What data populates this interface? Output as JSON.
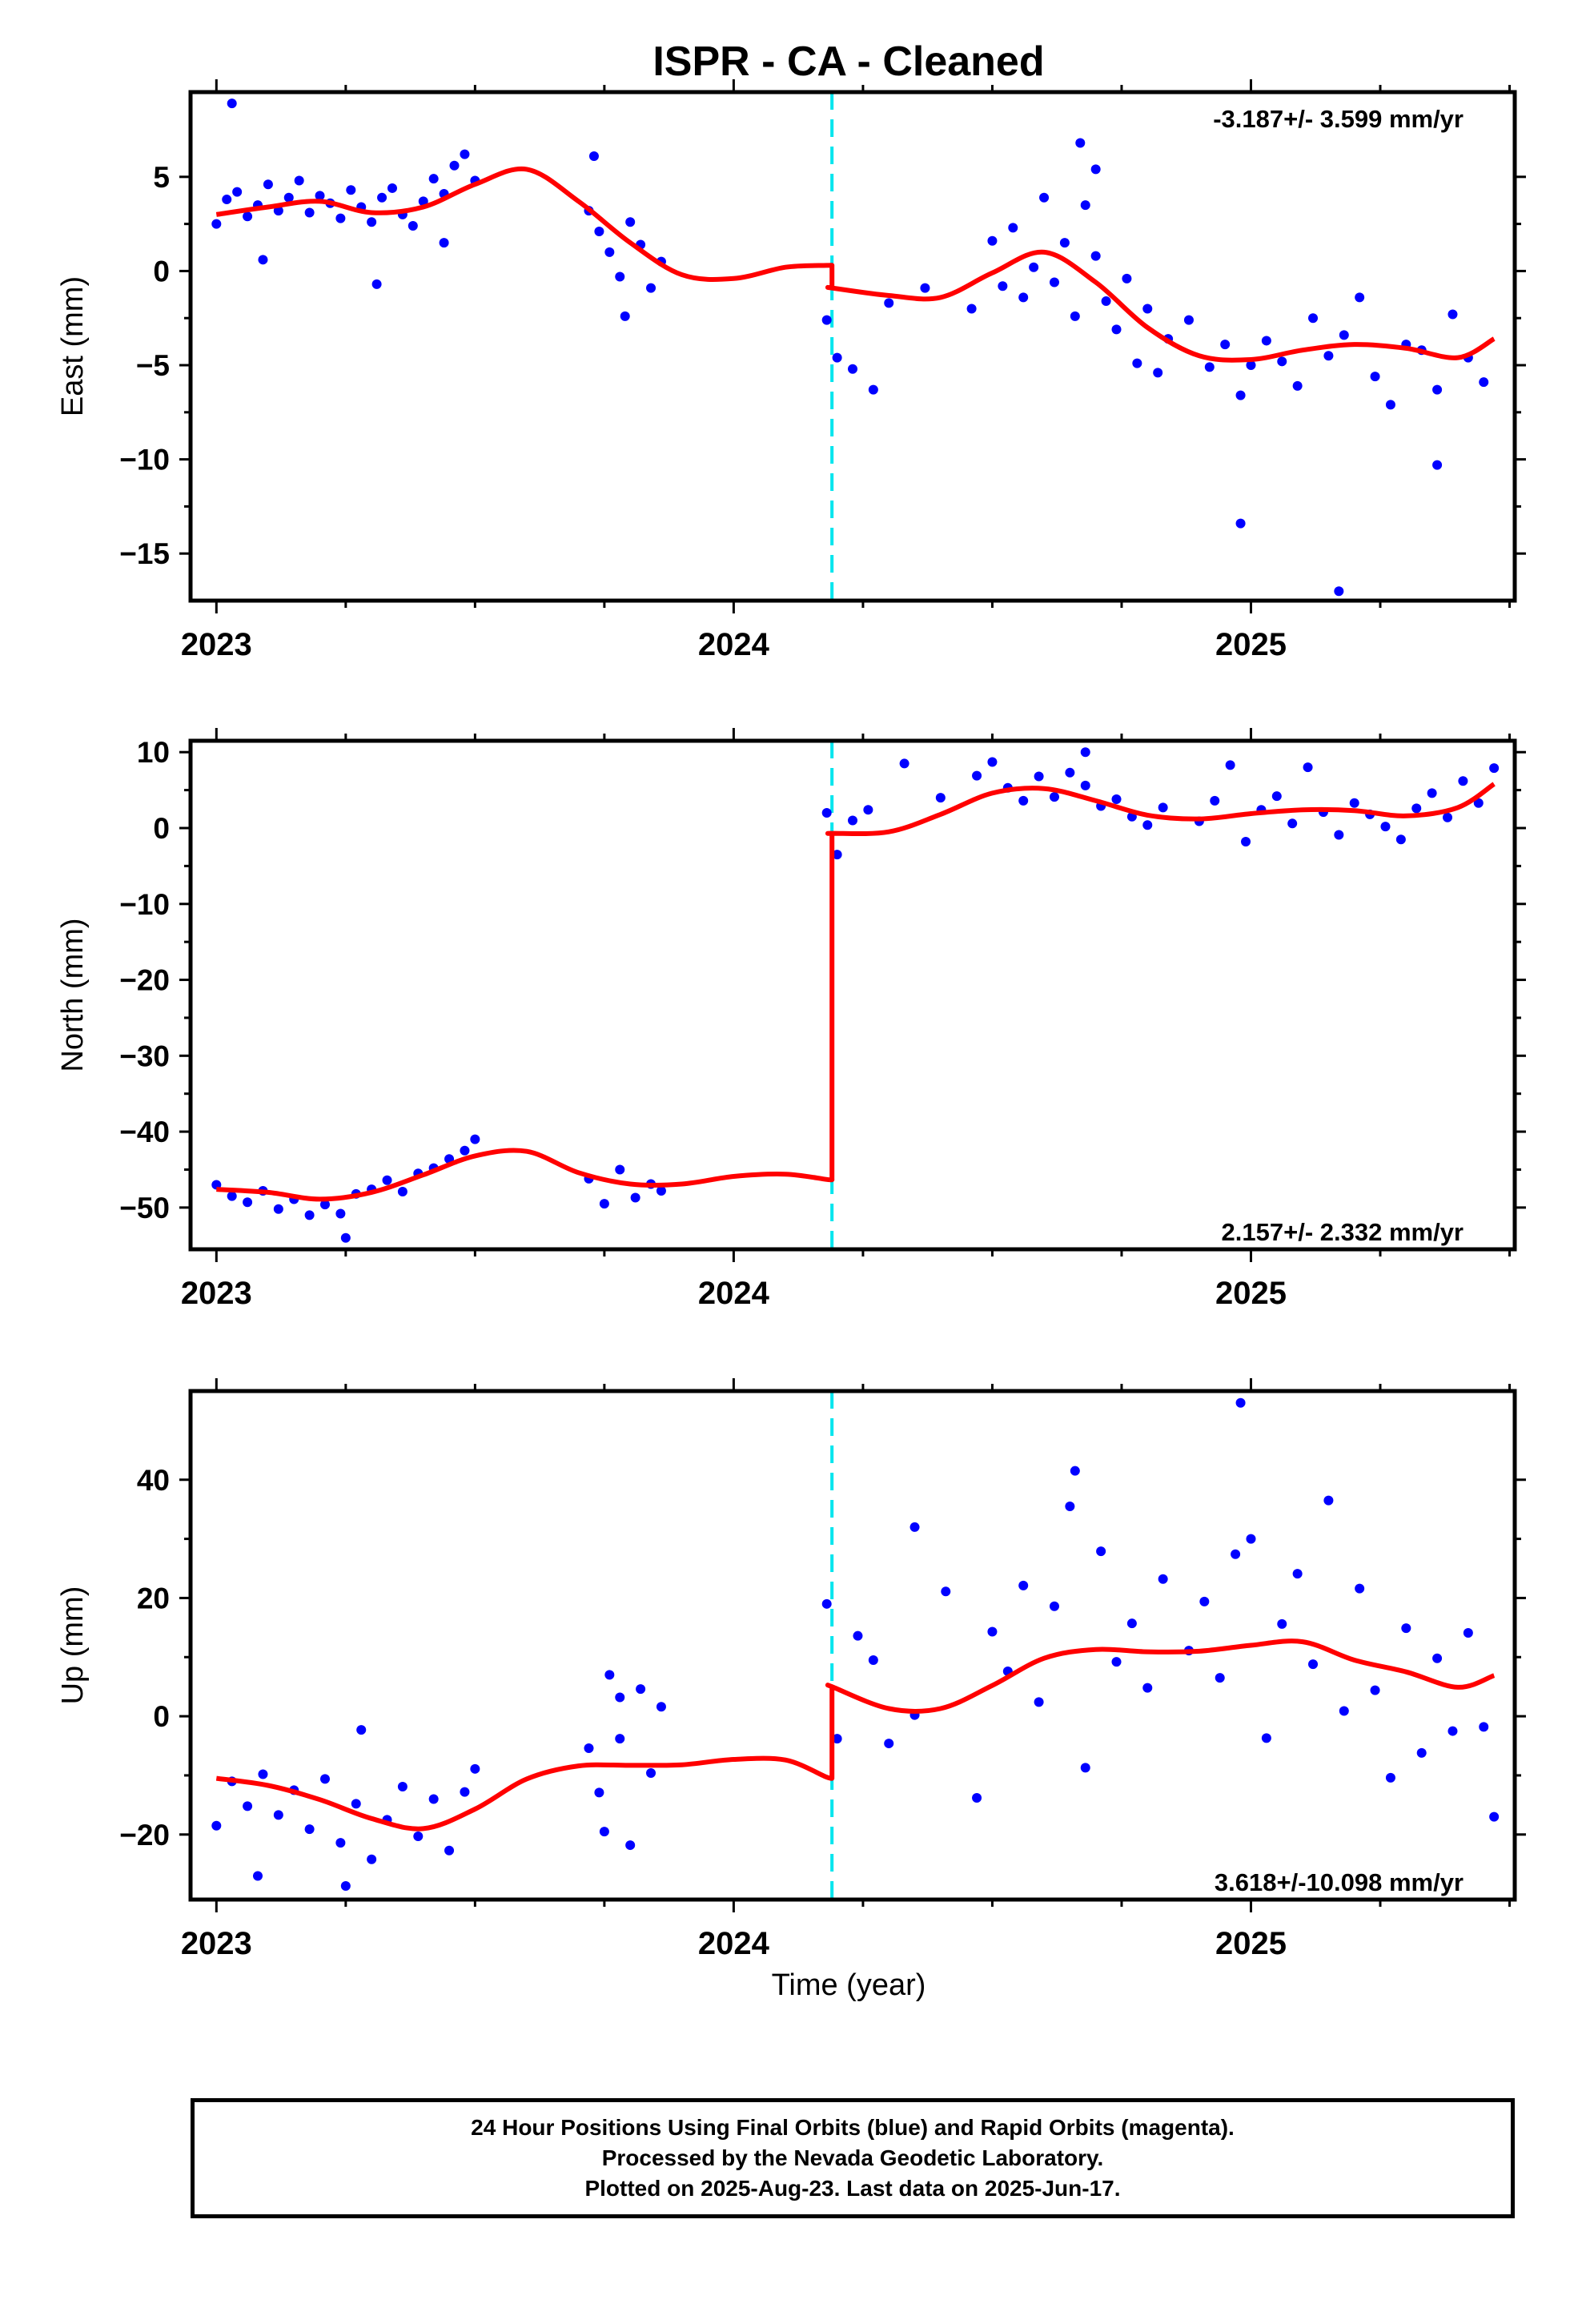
{
  "title": "ISPR  - CA - Cleaned",
  "xlabel": "Time (year)",
  "footer": {
    "lines": [
      "24 Hour Positions Using Final Orbits (blue) and Rapid Orbits (magenta).",
      "Processed by the Nevada Geodetic Laboratory.",
      "Plotted on 2025-Aug-23. Last data on 2025-Jun-17."
    ]
  },
  "colors": {
    "final_orbits": "#0000ff",
    "model": "#ff0000",
    "offset_line": "#00e5ee",
    "frame": "#000000"
  },
  "chart_data": [
    {
      "type": "scatter",
      "panel": "East",
      "ylabel": "East (mm)",
      "xlim": [
        2022.95,
        2025.51
      ],
      "ylim": [
        -17.5,
        9.5
      ],
      "xticks": [
        2023,
        2024,
        2025
      ],
      "yticks": [
        5,
        0,
        -5,
        -10,
        -15
      ],
      "rate_label": "-3.187+/- 3.599 mm/yr",
      "offset_epoch": 2024.19,
      "series": [
        {
          "role": "observations",
          "color": "#0000ff",
          "x": [
            2023.0,
            2023.02,
            2023.04,
            2023.06,
            2023.08,
            2023.1,
            2023.12,
            2023.14,
            2023.16,
            2023.18,
            2023.2,
            2023.22,
            2023.24,
            2023.26,
            2023.28,
            2023.3,
            2023.32,
            2023.34,
            2023.36,
            2023.38,
            2023.4,
            2023.42,
            2023.44,
            2023.46,
            2023.48,
            2023.5,
            2023.03,
            2023.09,
            2023.31,
            2023.44,
            2023.72,
            2023.74,
            2023.76,
            2023.78,
            2023.8,
            2023.82,
            2023.84,
            2023.86,
            2023.73,
            2023.79,
            2024.18,
            2024.2,
            2024.23,
            2024.27,
            2024.3,
            2024.37,
            2024.46,
            2024.5,
            2024.52,
            2024.54,
            2024.56,
            2024.58,
            2024.6,
            2024.62,
            2024.64,
            2024.66,
            2024.68,
            2024.7,
            2024.72,
            2024.74,
            2024.76,
            2024.78,
            2024.8,
            2024.82,
            2024.67,
            2024.7,
            2024.84,
            2024.88,
            2024.92,
            2024.95,
            2024.98,
            2025.0,
            2025.03,
            2025.06,
            2025.09,
            2025.12,
            2025.15,
            2025.18,
            2025.21,
            2025.24,
            2025.27,
            2025.3,
            2025.33,
            2025.36,
            2025.39,
            2025.42,
            2025.45,
            2024.98,
            2025.17,
            2025.36
          ],
          "y": [
            2.5,
            3.8,
            4.2,
            2.9,
            3.5,
            4.6,
            3.2,
            3.9,
            4.8,
            3.1,
            4.0,
            3.6,
            2.8,
            4.3,
            3.4,
            2.6,
            3.9,
            4.4,
            3.0,
            2.4,
            3.7,
            4.9,
            4.1,
            5.6,
            6.2,
            4.8,
            8.9,
            0.6,
            -0.7,
            1.5,
            3.2,
            2.1,
            1.0,
            -0.3,
            2.6,
            1.4,
            -0.9,
            0.5,
            6.1,
            -2.4,
            -2.6,
            -4.6,
            -5.2,
            -6.3,
            -1.7,
            -0.9,
            -2.0,
            1.6,
            -0.8,
            2.3,
            -1.4,
            0.2,
            3.9,
            -0.6,
            1.5,
            -2.4,
            3.5,
            0.8,
            -1.6,
            -3.1,
            -0.4,
            -4.9,
            -2.0,
            -5.4,
            6.8,
            5.4,
            -3.6,
            -2.6,
            -5.1,
            -3.9,
            -6.6,
            -5.0,
            -3.7,
            -4.8,
            -6.1,
            -2.5,
            -4.5,
            -3.4,
            -1.4,
            -5.6,
            -7.1,
            -3.9,
            -4.2,
            -6.3,
            -2.3,
            -4.6,
            -5.9,
            -13.4,
            -17.0,
            -10.3
          ]
        },
        {
          "role": "model",
          "color": "#ff0000",
          "x": [
            2023.0,
            2023.1,
            2023.2,
            2023.3,
            2023.4,
            2023.5,
            2023.6,
            2023.7,
            2023.8,
            2023.9,
            2024.0,
            2024.1,
            2024.18,
            2024.19,
            2024.3,
            2024.4,
            2024.5,
            2024.6,
            2024.7,
            2024.8,
            2024.9,
            2025.0,
            2025.1,
            2025.2,
            2025.3,
            2025.4,
            2025.47
          ],
          "y": [
            3.0,
            3.4,
            3.7,
            3.1,
            3.4,
            4.6,
            5.4,
            3.7,
            1.5,
            -0.2,
            -0.4,
            0.2,
            0.3,
            -0.9,
            -1.3,
            -1.4,
            -0.1,
            1.0,
            -0.6,
            -3.0,
            -4.5,
            -4.7,
            -4.2,
            -3.9,
            -4.1,
            -4.6,
            -3.6
          ]
        }
      ]
    },
    {
      "type": "scatter",
      "panel": "North",
      "ylabel": "North (mm)",
      "xlim": [
        2022.95,
        2025.51
      ],
      "ylim": [
        -55.5,
        11.5
      ],
      "xticks": [
        2023,
        2024,
        2025
      ],
      "yticks": [
        10,
        0,
        -10,
        -20,
        -30,
        -40,
        -50
      ],
      "rate_label": "2.157+/- 2.332 mm/yr",
      "offset_epoch": 2024.19,
      "series": [
        {
          "role": "observations",
          "color": "#0000ff",
          "x": [
            2023.0,
            2023.03,
            2023.06,
            2023.09,
            2023.12,
            2023.15,
            2023.18,
            2023.21,
            2023.24,
            2023.27,
            2023.3,
            2023.33,
            2023.36,
            2023.39,
            2023.42,
            2023.45,
            2023.48,
            2023.5,
            2023.25,
            2023.72,
            2023.75,
            2023.78,
            2023.81,
            2023.84,
            2023.86,
            2024.18,
            2024.2,
            2024.23,
            2024.26,
            2024.33,
            2024.4,
            2024.47,
            2024.5,
            2024.53,
            2024.56,
            2024.59,
            2024.62,
            2024.65,
            2024.68,
            2024.71,
            2024.74,
            2024.77,
            2024.8,
            2024.83,
            2024.68,
            2024.9,
            2024.93,
            2024.96,
            2024.99,
            2025.02,
            2025.05,
            2025.08,
            2025.11,
            2025.14,
            2025.17,
            2025.2,
            2025.23,
            2025.26,
            2025.29,
            2025.32,
            2025.35,
            2025.38,
            2025.41,
            2025.44,
            2025.47
          ],
          "y": [
            -47.0,
            -48.5,
            -49.3,
            -47.8,
            -50.2,
            -48.9,
            -51.0,
            -49.6,
            -50.8,
            -48.2,
            -47.6,
            -46.4,
            -47.9,
            -45.5,
            -44.8,
            -43.6,
            -42.5,
            -41.0,
            -54.0,
            -46.2,
            -49.5,
            -45.0,
            -48.7,
            -46.9,
            -47.8,
            2.0,
            -3.5,
            1.0,
            2.4,
            8.5,
            4.0,
            6.9,
            8.7,
            5.3,
            3.6,
            6.8,
            4.1,
            7.3,
            5.6,
            2.9,
            3.8,
            1.5,
            0.4,
            2.7,
            10.0,
            0.9,
            3.6,
            8.3,
            -1.8,
            2.4,
            4.2,
            0.6,
            8.0,
            2.1,
            -0.9,
            3.3,
            1.8,
            0.2,
            -1.5,
            2.6,
            4.6,
            1.4,
            6.2,
            3.3,
            7.9
          ]
        },
        {
          "role": "model",
          "color": "#ff0000",
          "x": [
            2023.0,
            2023.1,
            2023.2,
            2023.3,
            2023.4,
            2023.5,
            2023.6,
            2023.7,
            2023.8,
            2023.9,
            2024.0,
            2024.1,
            2024.18,
            2024.19,
            2024.3,
            2024.4,
            2024.5,
            2024.6,
            2024.7,
            2024.8,
            2024.9,
            2025.0,
            2025.1,
            2025.2,
            2025.3,
            2025.4,
            2025.47
          ],
          "y": [
            -47.6,
            -48.0,
            -48.9,
            -48.0,
            -45.7,
            -43.2,
            -42.6,
            -45.4,
            -46.9,
            -46.9,
            -45.9,
            -45.6,
            -46.3,
            -0.7,
            -0.5,
            1.8,
            4.6,
            5.2,
            3.6,
            1.7,
            1.2,
            1.9,
            2.4,
            2.3,
            1.6,
            2.7,
            5.8
          ]
        }
      ]
    },
    {
      "type": "scatter",
      "panel": "Up",
      "ylabel": "Up (mm)",
      "xlim": [
        2022.95,
        2025.51
      ],
      "ylim": [
        -31.0,
        55.0
      ],
      "xticks": [
        2023,
        2024,
        2025
      ],
      "yticks": [
        40,
        20,
        0,
        -20
      ],
      "rate_label": "3.618+/-10.098 mm/yr",
      "offset_epoch": 2024.19,
      "series": [
        {
          "role": "observations",
          "color": "#0000ff",
          "x": [
            2023.0,
            2023.03,
            2023.06,
            2023.09,
            2023.12,
            2023.15,
            2023.18,
            2023.21,
            2023.24,
            2023.27,
            2023.3,
            2023.33,
            2023.36,
            2023.39,
            2023.42,
            2023.45,
            2023.48,
            2023.5,
            2023.25,
            2023.28,
            2023.08,
            2023.72,
            2023.74,
            2023.76,
            2023.78,
            2023.8,
            2023.82,
            2023.84,
            2023.86,
            2023.75,
            2023.78,
            2024.18,
            2024.2,
            2024.24,
            2024.27,
            2024.3,
            2024.35,
            2024.41,
            2024.47,
            2024.5,
            2024.53,
            2024.56,
            2024.59,
            2024.62,
            2024.65,
            2024.68,
            2024.71,
            2024.74,
            2024.77,
            2024.8,
            2024.83,
            2024.66,
            2024.88,
            2024.91,
            2024.94,
            2024.97,
            2025.0,
            2025.03,
            2025.06,
            2025.09,
            2025.12,
            2025.15,
            2025.18,
            2025.21,
            2025.24,
            2025.27,
            2025.3,
            2025.33,
            2025.36,
            2025.39,
            2025.42,
            2025.45,
            2025.47,
            2024.98,
            2024.35
          ],
          "y": [
            -18.5,
            -11.0,
            -15.2,
            -9.8,
            -16.7,
            -12.5,
            -19.1,
            -10.6,
            -21.4,
            -14.8,
            -24.2,
            -17.5,
            -11.9,
            -20.3,
            -14.0,
            -22.7,
            -12.8,
            -8.9,
            -28.7,
            -2.3,
            -27.0,
            -5.4,
            -12.9,
            7.0,
            -3.8,
            -21.8,
            4.6,
            -9.6,
            1.6,
            -19.5,
            3.2,
            19.0,
            -3.8,
            13.6,
            9.5,
            -4.6,
            32.0,
            21.1,
            -13.8,
            14.3,
            7.6,
            22.1,
            2.4,
            18.6,
            35.5,
            -8.7,
            27.9,
            9.2,
            15.7,
            4.8,
            23.2,
            41.5,
            11.1,
            19.4,
            6.5,
            27.4,
            30.0,
            -3.7,
            15.6,
            24.1,
            8.8,
            36.5,
            0.9,
            21.6,
            4.4,
            -10.4,
            14.9,
            -6.2,
            9.8,
            -2.5,
            14.1,
            -1.8,
            -17.0,
            53.0,
            0.2
          ]
        },
        {
          "role": "model",
          "color": "#ff0000",
          "x": [
            2023.0,
            2023.1,
            2023.2,
            2023.3,
            2023.4,
            2023.5,
            2023.6,
            2023.7,
            2023.8,
            2023.9,
            2024.0,
            2024.1,
            2024.18,
            2024.19,
            2024.3,
            2024.4,
            2024.5,
            2024.6,
            2024.7,
            2024.8,
            2024.9,
            2025.0,
            2025.1,
            2025.2,
            2025.3,
            2025.4,
            2025.47
          ],
          "y": [
            -10.5,
            -11.7,
            -14.1,
            -17.3,
            -19.0,
            -15.7,
            -10.6,
            -8.4,
            -8.3,
            -8.2,
            -7.3,
            -7.4,
            -10.3,
            5.0,
            1.3,
            1.3,
            5.2,
            9.8,
            11.3,
            10.9,
            11.0,
            12.0,
            12.6,
            9.5,
            7.5,
            4.9,
            6.9
          ]
        }
      ]
    }
  ]
}
